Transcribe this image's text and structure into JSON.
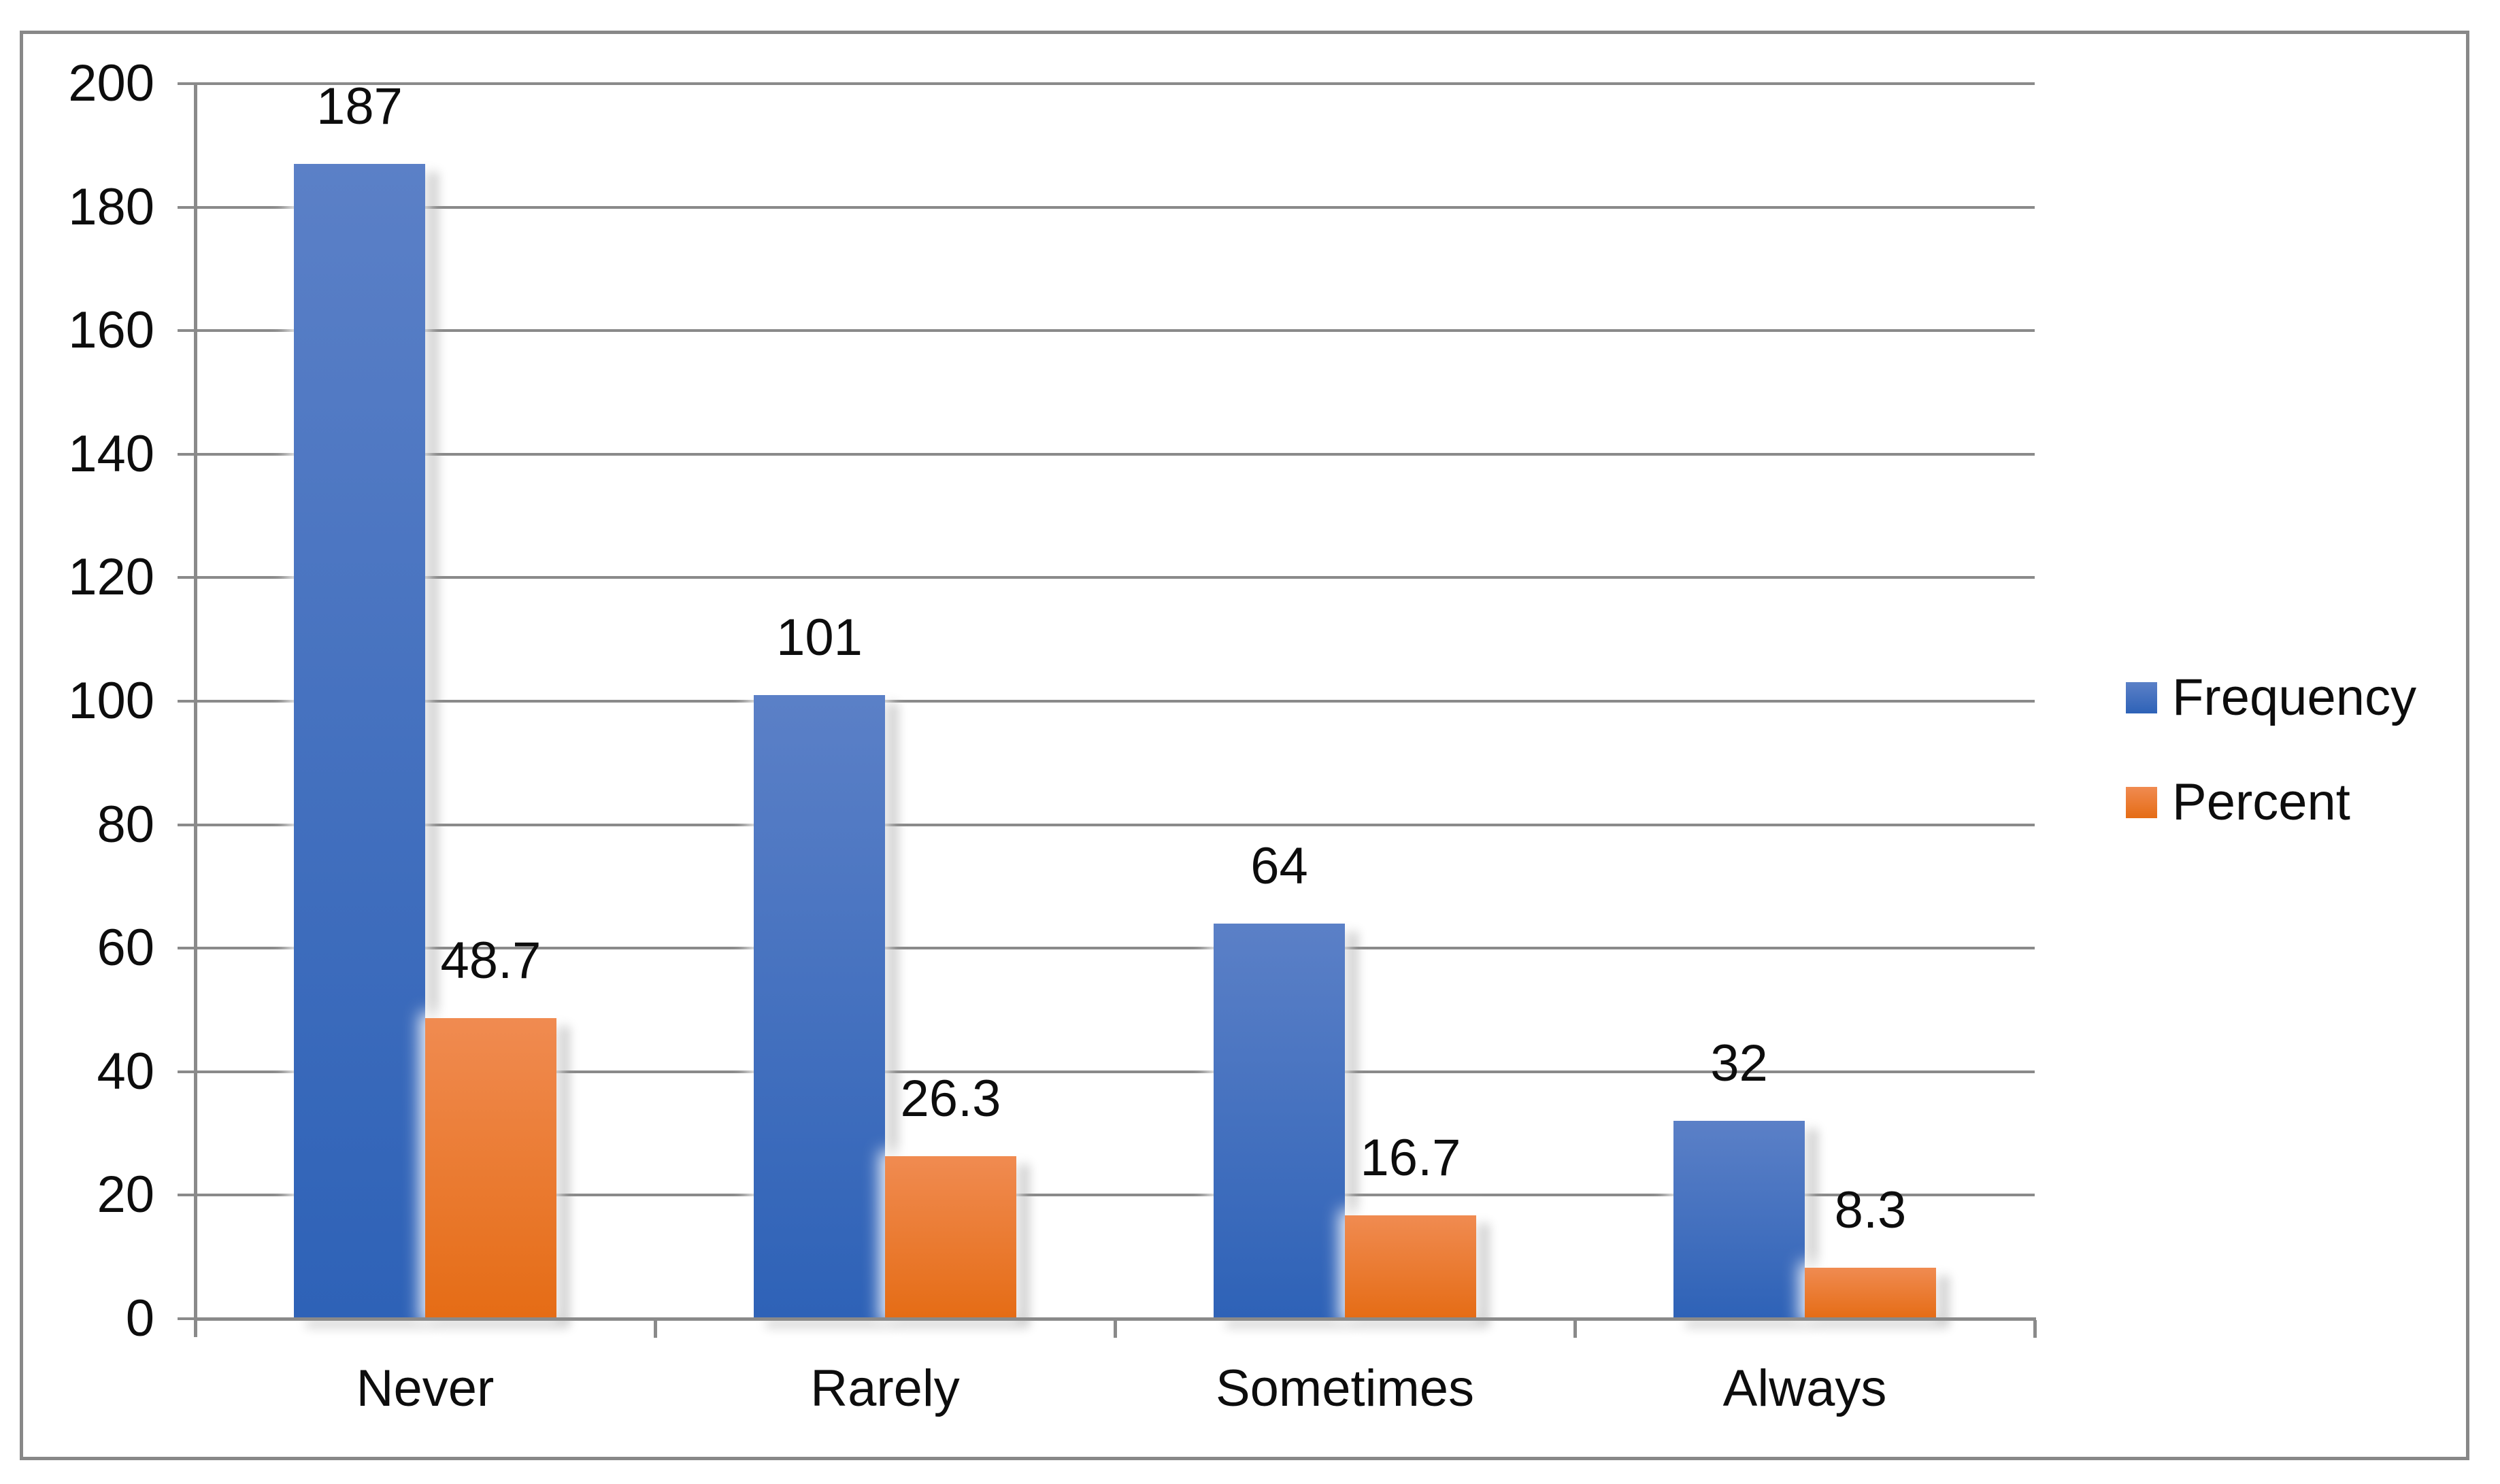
{
  "chart_data": {
    "type": "bar",
    "title": "",
    "xlabel": "",
    "ylabel": "",
    "categories": [
      "Never",
      "Rarely",
      "Sometimes",
      "Always"
    ],
    "series": [
      {
        "name": "Frequency",
        "values": [
          187,
          101,
          64,
          32
        ]
      },
      {
        "name": "Percent",
        "values": [
          48.7,
          26.3,
          16.7,
          8.3
        ]
      }
    ],
    "data_labels": [
      [
        "187",
        "101",
        "64",
        "32"
      ],
      [
        "48.7",
        "26.3",
        "16.7",
        "8.3"
      ]
    ],
    "ylim": [
      0,
      200
    ],
    "y_ticks": [
      0,
      20,
      40,
      60,
      80,
      100,
      120,
      140,
      160,
      180,
      200
    ],
    "grid": true,
    "legend": {
      "position": "right",
      "entries": [
        "Frequency",
        "Percent"
      ]
    },
    "series_colors": [
      {
        "top": "#5B80C7",
        "bottom": "#2E62B7"
      },
      {
        "top": "#F08B51",
        "bottom": "#E56C15"
      }
    ]
  },
  "colors": {
    "grid": "#8A8A8A",
    "axis": "#8A8A8A",
    "frame": "#888888",
    "text": "#0D0D0D",
    "background": "#FFFFFF"
  }
}
